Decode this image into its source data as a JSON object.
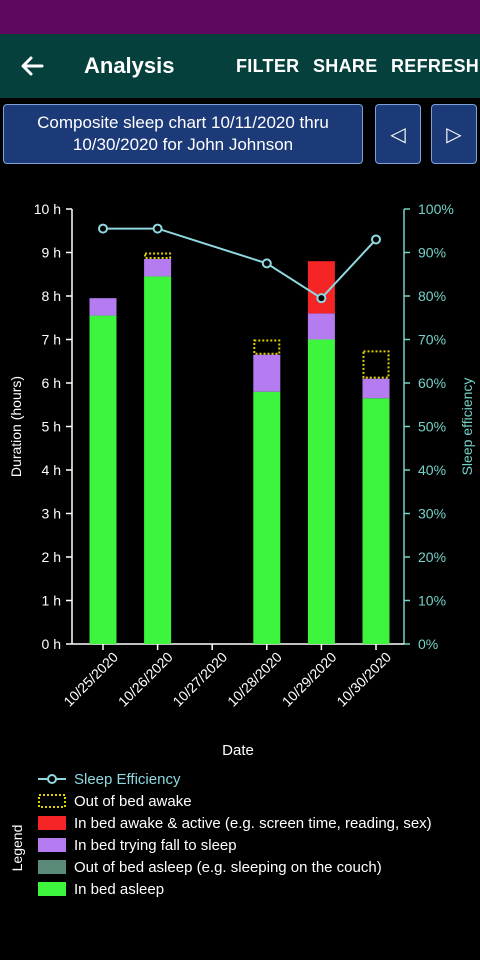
{
  "app": {
    "title": "Analysis",
    "actions": {
      "filter": "FILTER",
      "share": "SHARE",
      "refresh": "REFRESH"
    }
  },
  "header": {
    "chart_title": "Composite sleep chart 10/11/2020 thru 10/30/2020 for John Johnson",
    "prev_symbol": "◁",
    "next_symbol": "▷"
  },
  "colors": {
    "in_bed_asleep": "#3ef53e",
    "out_of_bed_asleep": "#5a8a78",
    "in_bed_trying": "#b57cf2",
    "in_bed_awake_active": "#f52525",
    "out_of_bed_awake": "#e0d000",
    "efficiency": "#8fd8e0",
    "right_axis": "#74d2c8"
  },
  "chart_data": {
    "type": "bar",
    "stacked": true,
    "categories": [
      "10/25/2020",
      "10/26/2020",
      "10/27/2020",
      "10/28/2020",
      "10/29/2020",
      "10/30/2020"
    ],
    "xlabel": "Date",
    "ylabel": "Duration (hours)",
    "y2label": "Sleep efficiency",
    "ylim": [
      0,
      10
    ],
    "y2lim": [
      0,
      100
    ],
    "yticks": [
      "0 h",
      "1 h",
      "2 h",
      "3 h",
      "4 h",
      "5 h",
      "6 h",
      "7 h",
      "8 h",
      "9 h",
      "10 h"
    ],
    "y2ticks": [
      "0%",
      "10%",
      "20%",
      "30%",
      "40%",
      "50%",
      "60%",
      "70%",
      "80%",
      "90%",
      "100%"
    ],
    "legend_title": "Legend",
    "legend_position": "bottom-left",
    "series": [
      {
        "name": "In bed asleep",
        "key": "in_bed_asleep",
        "style": "fill",
        "values": [
          7.55,
          8.45,
          0,
          5.8,
          7.0,
          5.65
        ]
      },
      {
        "name": "Out of bed asleep (e.g. sleeping on the couch)",
        "key": "out_of_bed_asleep",
        "style": "fill",
        "values": [
          0,
          0,
          0,
          0,
          0,
          0
        ]
      },
      {
        "name": "In bed trying fall to sleep",
        "key": "in_bed_trying",
        "style": "fill",
        "values": [
          0.4,
          0.4,
          0,
          0.85,
          0.6,
          0.45
        ]
      },
      {
        "name": "In bed awake & active (e.g. screen time, reading, sex)",
        "key": "in_bed_awake_active",
        "style": "fill",
        "values": [
          0,
          0,
          0,
          0,
          1.2,
          0
        ]
      },
      {
        "name": "Out of bed awake",
        "key": "out_of_bed_awake",
        "style": "dotted",
        "values": [
          0,
          0.15,
          0,
          0.35,
          0,
          0.65
        ]
      }
    ],
    "line_series": {
      "name": "Sleep Efficiency",
      "key": "efficiency",
      "x": [
        "10/25/2020",
        "10/26/2020",
        "10/28/2020",
        "10/29/2020",
        "10/30/2020"
      ],
      "values": [
        95.5,
        95.5,
        87.5,
        79.5,
        93.0
      ]
    },
    "legend_order": [
      "line",
      "out_of_bed_awake",
      "in_bed_awake_active",
      "in_bed_trying",
      "out_of_bed_asleep",
      "in_bed_asleep"
    ]
  }
}
